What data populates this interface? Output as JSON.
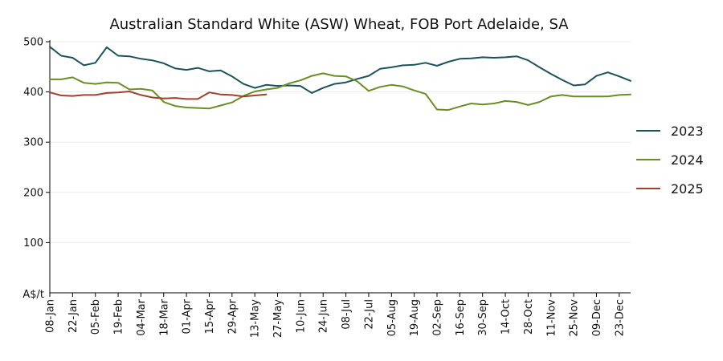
{
  "chart_data": {
    "type": "line",
    "title": "Australian Standard White (ASW) Wheat, FOB Port Adelaide, SA",
    "ylabel": "A$/t",
    "ylim": [
      0,
      500
    ],
    "yticks": [
      100,
      200,
      300,
      400,
      500
    ],
    "grid": true,
    "legend_position": "right",
    "x_tick_labels": [
      "08-Jan",
      "22-Jan",
      "05-Feb",
      "19-Feb",
      "04-Mar",
      "18-Mar",
      "01-Apr",
      "15-Apr",
      "29-Apr",
      "13-May",
      "27-May",
      "10-Jun",
      "24-Jun",
      "08-Jul",
      "22-Jul",
      "05-Aug",
      "19-Aug",
      "02-Sep",
      "16-Sep",
      "30-Sep",
      "14-Oct",
      "28-Oct",
      "11-Nov",
      "25-Nov",
      "09-Dec",
      "23-Dec"
    ],
    "x_weeks_range": [
      1,
      52
    ],
    "series": [
      {
        "name": "2023",
        "color": "#1a535c",
        "weeks": [
          1,
          2,
          3,
          4,
          5,
          6,
          7,
          8,
          9,
          10,
          11,
          12,
          13,
          14,
          15,
          16,
          17,
          18,
          19,
          20,
          21,
          22,
          23,
          24,
          25,
          26,
          27,
          28,
          29,
          30,
          31,
          32,
          33,
          34,
          35,
          36,
          37,
          38,
          39,
          40,
          41,
          42,
          43,
          44,
          45,
          46,
          47,
          48,
          49,
          50,
          51,
          52
        ],
        "values": [
          490,
          472,
          468,
          453,
          458,
          489,
          472,
          471,
          466,
          463,
          457,
          447,
          444,
          448,
          441,
          443,
          431,
          416,
          408,
          414,
          412,
          413,
          412,
          398,
          408,
          416,
          419,
          426,
          432,
          446,
          449,
          453,
          454,
          458,
          452,
          460,
          466,
          467,
          469,
          468,
          469,
          471,
          463,
          449,
          436,
          424,
          413,
          415,
          432,
          439,
          431,
          422
        ]
      },
      {
        "name": "2024",
        "color": "#6b8e23",
        "weeks": [
          1,
          2,
          3,
          4,
          5,
          6,
          7,
          8,
          9,
          10,
          11,
          12,
          13,
          14,
          15,
          16,
          17,
          18,
          19,
          20,
          21,
          22,
          23,
          24,
          25,
          26,
          27,
          28,
          29,
          30,
          31,
          32,
          33,
          34,
          35,
          36,
          37,
          38,
          39,
          40,
          41,
          42,
          43,
          44,
          45,
          46,
          47,
          48,
          49,
          50,
          51,
          52
        ],
        "values": [
          425,
          425,
          429,
          418,
          416,
          419,
          418,
          405,
          406,
          403,
          380,
          372,
          369,
          368,
          367,
          373,
          379,
          392,
          401,
          405,
          408,
          417,
          423,
          432,
          437,
          432,
          431,
          421,
          402,
          410,
          414,
          411,
          403,
          396,
          365,
          364,
          371,
          377,
          375,
          377,
          382,
          380,
          374,
          380,
          391,
          394,
          391,
          391,
          391,
          391,
          394,
          395
        ]
      },
      {
        "name": "2025",
        "color": "#a0412d",
        "weeks": [
          1,
          2,
          3,
          4,
          5,
          6,
          7,
          8,
          9,
          10,
          11,
          12,
          13,
          14,
          15,
          16,
          17,
          18,
          19,
          20
        ],
        "values": [
          399,
          393,
          392,
          394,
          394,
          398,
          399,
          401,
          394,
          389,
          387,
          388,
          386,
          386,
          399,
          395,
          394,
          391,
          393,
          395
        ]
      }
    ]
  }
}
